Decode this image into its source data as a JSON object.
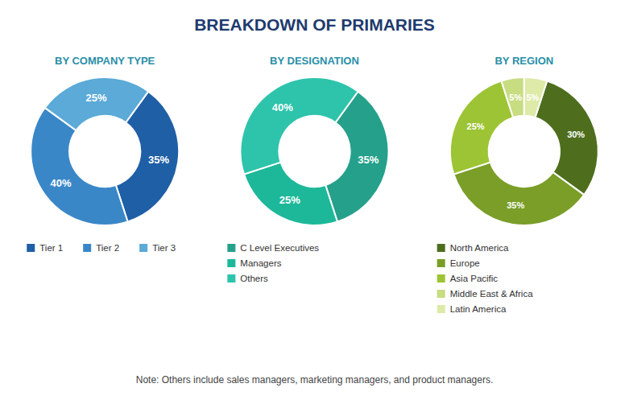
{
  "title": "BREAKDOWN OF PRIMARIES",
  "annotations": [
    "Note: Others include sales managers, marketing managers, and product managers."
  ],
  "chart_data": [
    {
      "type": "donut",
      "title": "BY COMPANY TYPE",
      "categories": [
        "Tier 1",
        "Tier 2",
        "Tier 3"
      ],
      "values": [
        35,
        40,
        25
      ],
      "value_labels": [
        "35%",
        "40%",
        "25%"
      ],
      "colors": [
        "#1f5fa6",
        "#3a87c8",
        "#5baad8"
      ],
      "data_labels": true,
      "legend": "bottom"
    },
    {
      "type": "donut",
      "title": "BY DESIGNATION",
      "categories": [
        "C Level Executives",
        "Managers",
        "Others"
      ],
      "values": [
        35,
        25,
        40
      ],
      "value_labels": [
        "35%",
        "25%",
        "40%"
      ],
      "colors": [
        "#25a08b",
        "#1db89a",
        "#2dc4ab"
      ],
      "data_labels": true,
      "legend": "bottom"
    },
    {
      "type": "donut",
      "title": "BY REGION",
      "categories": [
        "North America",
        "Europe",
        "Asia Pacific",
        "Middle East & Africa",
        "Latin America"
      ],
      "values": [
        30,
        35,
        25,
        5,
        5
      ],
      "value_labels": [
        "30%",
        "35%",
        "25%",
        "5%",
        "5%"
      ],
      "colors": [
        "#4e6e1e",
        "#7a9e28",
        "#9dc434",
        "#c8dc82",
        "#ddeaa8"
      ],
      "data_labels": true,
      "legend": "bottom"
    }
  ]
}
